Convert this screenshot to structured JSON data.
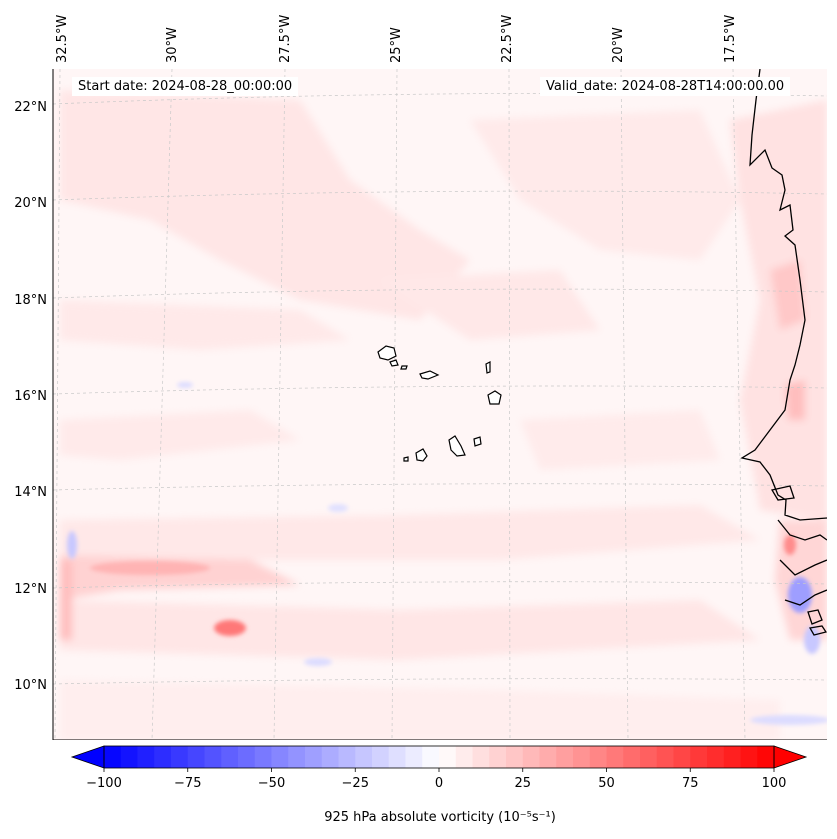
{
  "header": {
    "start_date": "Start date: 2024-08-28_00:00:00",
    "valid_date": "Valid_date: 2024-08-28T14:00:00.00"
  },
  "map": {
    "longitude_labels": [
      "32.5°W",
      "30°W",
      "27.5°W",
      "25°W",
      "22.5°W",
      "20°W",
      "17.5°W"
    ],
    "latitude_labels": [
      "22°N",
      "20°N",
      "18°N",
      "16°N",
      "14°N",
      "12°N",
      "10°N"
    ],
    "field": "925 hPa absolute vorticity",
    "colors": {
      "positive": "#ff0000",
      "negative": "#0000ff",
      "neutral": "#ffffff",
      "coast": "#000000",
      "grid": "#c8c8c8"
    }
  },
  "colorbar": {
    "min": -100,
    "max": 100,
    "step": 5,
    "tick_values": [
      -100,
      -75,
      -50,
      -25,
      0,
      25,
      50,
      75,
      100
    ],
    "tick_labels": [
      "−100",
      "−75",
      "−50",
      "−25",
      "0",
      "25",
      "50",
      "75",
      "100"
    ],
    "label": "925 hPa absolute vorticity (10⁻⁵s⁻¹)"
  }
}
